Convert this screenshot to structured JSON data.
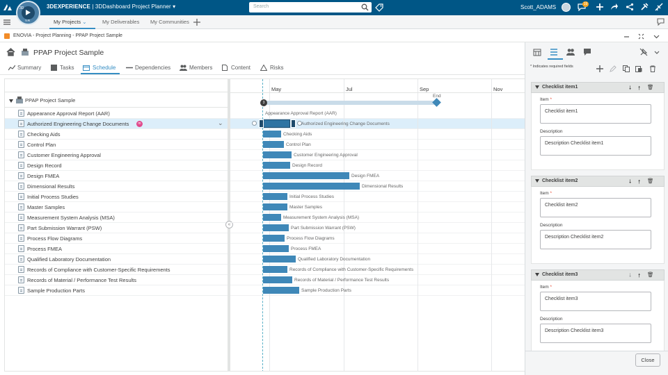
{
  "topbar": {
    "brand_bold": "3DEXPERIENCE",
    "brand_sep": " | 3DDashboard ",
    "app_name": "Project Planner",
    "search_placeholder": "Search",
    "user_name": "Scott_ADAMS",
    "notification_count": "19",
    "compass_north": "3D",
    "compass_south": "V.R",
    "colors": {
      "bar": "#005686",
      "accent": "#368ec4"
    }
  },
  "dashboard_tabs": {
    "items": [
      {
        "label": "My Projects"
      },
      {
        "label": "My Deliverables"
      },
      {
        "label": "My Communities"
      }
    ]
  },
  "breadcrumb": {
    "text": "ENOVIA - Project Planning - PPAP Project Sample"
  },
  "project": {
    "title": "PPAP Project Sample"
  },
  "nav_tabs": [
    {
      "label": "Summary"
    },
    {
      "label": "Tasks"
    },
    {
      "label": "Schedule"
    },
    {
      "label": "Dependencies"
    },
    {
      "label": "Members"
    },
    {
      "label": "Content"
    },
    {
      "label": "Risks"
    }
  ],
  "tree": {
    "root": "PPAP Project Sample",
    "selected_badge": "m",
    "tasks": [
      "Appearance Approval Report (AAR)",
      "Authorized Engineering Change Documents",
      "Checking Aids",
      "Control Plan",
      "Customer Engineering Approval",
      "Design Record",
      "Design FMEA",
      "Dimensional Results",
      "Initial Process Studies",
      "Master Samples",
      "Measurement System Analysis (MSA)",
      "Part Submission Warrant (PSW)",
      "Process Flow Diagrams",
      "Process FMEA",
      "Qualified Laboratory Documentation",
      "Records of Compliance with Customer-Specific Requirements",
      "Records of Material / Performance Test Results",
      "Sample Production Parts"
    ]
  },
  "gantt": {
    "months": [
      "May",
      "Jul",
      "Sep",
      "Nov"
    ],
    "end_label": "End",
    "start_badge": "3"
  },
  "panel": {
    "required_note": "* Indicates required fields",
    "item_label": "Item",
    "description_label": "Description",
    "checklist": [
      {
        "header": "Checklist item1",
        "item": "Checklist item1",
        "description": "Description Checklist item1"
      },
      {
        "header": "Checklist item2",
        "item": "Checklist item2",
        "description": "Description Checklist item2"
      },
      {
        "header": "Checklist item3",
        "item": "Checklist item3",
        "description": "Description Checklist item3"
      }
    ],
    "close_label": "Close"
  }
}
